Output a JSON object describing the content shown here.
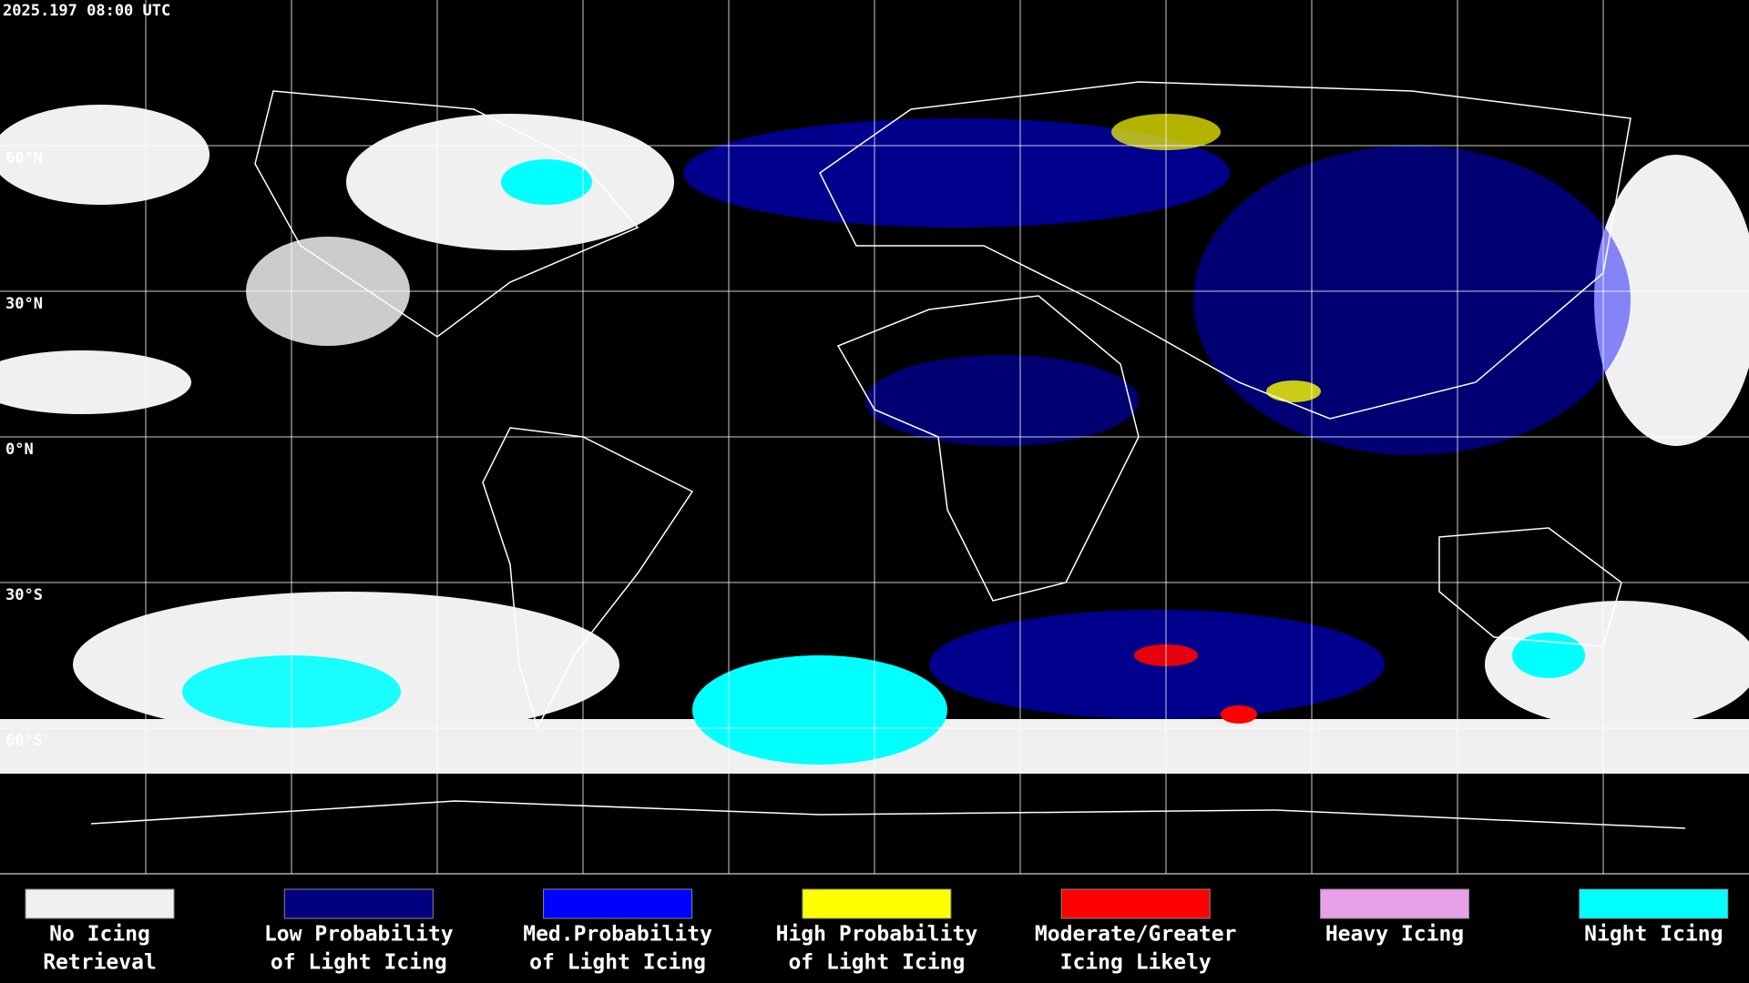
{
  "header": {
    "timestamp": "2025.197 08:00 UTC"
  },
  "map": {
    "lat_labels": [
      "60°N",
      "30°N",
      "0°N",
      "30°S",
      "60°S"
    ]
  },
  "legend": [
    {
      "color": "#f0f0f0",
      "line1": "No Icing",
      "line2": "Retrieval"
    },
    {
      "color": "#000080",
      "line1": "Low Probability",
      "line2": "of Light Icing"
    },
    {
      "color": "#0000ff",
      "line1": "Med.Probability",
      "line2": "of Light Icing"
    },
    {
      "color": "#ffff00",
      "line1": "High Probability",
      "line2": "of Light Icing"
    },
    {
      "color": "#ff0000",
      "line1": "Moderate/Greater",
      "line2": "Icing Likely"
    },
    {
      "color": "#e8a0e8",
      "line1": "Heavy Icing",
      "line2": ""
    },
    {
      "color": "#00ffff",
      "line1": "Night Icing",
      "line2": ""
    }
  ]
}
